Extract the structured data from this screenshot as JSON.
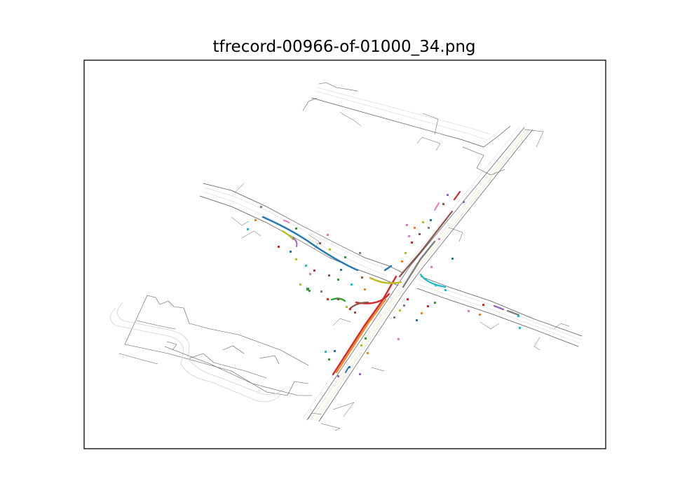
{
  "figure": {
    "title": "tfrecord-00966-of-01000_34.png"
  },
  "colors": {
    "road_line": "#555555",
    "lane_line": "#c8c8c8",
    "center_line": "#f5f0a0",
    "frame": "#000000",
    "palette": [
      "#1f77b4",
      "#ff7f0e",
      "#2ca02c",
      "#d62728",
      "#9467bd",
      "#8c564b",
      "#e377c2",
      "#7f7f7f",
      "#bcbd22",
      "#17becf"
    ]
  }
}
